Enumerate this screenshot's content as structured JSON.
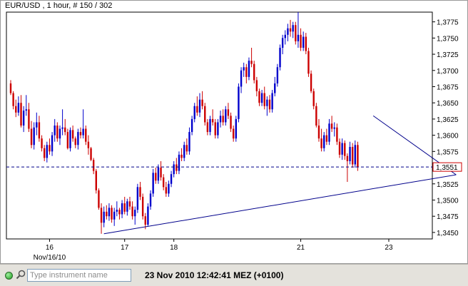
{
  "header": {
    "title": "EUR/USD , 1 hour, # 150 / 302"
  },
  "status_bar": {
    "instrument_placeholder": "Type instrument name",
    "datetime": "23 Nov 2010 12:42:41 MEZ (+0100)"
  },
  "colors": {
    "up_candle": "#0000cc",
    "down_candle": "#cc0000",
    "price_line": "#00008b",
    "trendline": "#00008b",
    "price_label_border": "#cc0000"
  },
  "chart_data": {
    "type": "candlestick",
    "title": "EUR/USD , 1 hour, # 150 / 302",
    "ylim": [
      1.344,
      1.379
    ],
    "y_ticks": [
      {
        "value": 1.3775,
        "label": "1,3775"
      },
      {
        "value": 1.375,
        "label": "1,3750"
      },
      {
        "value": 1.3725,
        "label": "1,3725"
      },
      {
        "value": 1.37,
        "label": "1,3700"
      },
      {
        "value": 1.3675,
        "label": "1,3675"
      },
      {
        "value": 1.365,
        "label": "1,3650"
      },
      {
        "value": 1.3625,
        "label": "1,3625"
      },
      {
        "value": 1.36,
        "label": "1,3600"
      },
      {
        "value": 1.3575,
        "label": "1,3575"
      },
      {
        "value": 1.3525,
        "label": "1,3525"
      },
      {
        "value": 1.35,
        "label": "1,3500"
      },
      {
        "value": 1.3475,
        "label": "1,3475"
      },
      {
        "value": 1.345,
        "label": "1,3450"
      }
    ],
    "x_ticks": [
      {
        "index": 15,
        "label": "16"
      },
      {
        "index": 44,
        "label": "17"
      },
      {
        "index": 63,
        "label": "18"
      },
      {
        "index": 112,
        "label": "21"
      },
      {
        "index": 146,
        "label": "23"
      }
    ],
    "x_sublabel": {
      "index": 15,
      "label": "Nov/16/10"
    },
    "last_price": {
      "value": 1.3551,
      "label": "1,3551"
    },
    "trendlines": [
      {
        "from": {
          "index": 36,
          "value": 1.3448
        },
        "to": {
          "index": 172,
          "value": 1.3539
        }
      },
      {
        "from": {
          "index": 140,
          "value": 1.363
        },
        "to": {
          "index": 172,
          "value": 1.3539
        }
      }
    ],
    "candles": [
      [
        1.368,
        1.3685,
        1.3662,
        1.3665
      ],
      [
        1.3665,
        1.3668,
        1.364,
        1.3645
      ],
      [
        1.3645,
        1.3655,
        1.3628,
        1.3635
      ],
      [
        1.3635,
        1.366,
        1.363,
        1.365
      ],
      [
        1.365,
        1.3662,
        1.3612,
        1.3615
      ],
      [
        1.3615,
        1.3645,
        1.3605,
        1.3638
      ],
      [
        1.3638,
        1.3662,
        1.363,
        1.364
      ],
      [
        1.364,
        1.365,
        1.3605,
        1.361
      ],
      [
        1.361,
        1.3622,
        1.358,
        1.3585
      ],
      [
        1.3585,
        1.362,
        1.3578,
        1.3612
      ],
      [
        1.3612,
        1.3635,
        1.36,
        1.362
      ],
      [
        1.362,
        1.363,
        1.359,
        1.3595
      ],
      [
        1.3595,
        1.36,
        1.3575,
        1.358
      ],
      [
        1.358,
        1.3585,
        1.356,
        1.3565
      ],
      [
        1.3565,
        1.359,
        1.3558,
        1.3585
      ],
      [
        1.3585,
        1.3595,
        1.357,
        1.3575
      ],
      [
        1.3575,
        1.3605,
        1.3568,
        1.36
      ],
      [
        1.36,
        1.3625,
        1.359,
        1.3615
      ],
      [
        1.3615,
        1.362,
        1.359,
        1.3595
      ],
      [
        1.3595,
        1.3615,
        1.3585,
        1.361
      ],
      [
        1.361,
        1.364,
        1.36,
        1.3612
      ],
      [
        1.3612,
        1.3625,
        1.36,
        1.3605
      ],
      [
        1.3605,
        1.361,
        1.3578,
        1.358
      ],
      [
        1.358,
        1.3612,
        1.3575,
        1.3608
      ],
      [
        1.3608,
        1.3615,
        1.359,
        1.3595
      ],
      [
        1.3595,
        1.3598,
        1.358,
        1.3585
      ],
      [
        1.3585,
        1.361,
        1.3578,
        1.3605
      ],
      [
        1.3605,
        1.3612,
        1.3595,
        1.36
      ],
      [
        1.36,
        1.364,
        1.3595,
        1.361
      ],
      [
        1.361,
        1.3615,
        1.3585,
        1.359
      ],
      [
        1.359,
        1.36,
        1.357,
        1.358
      ],
      [
        1.358,
        1.3582,
        1.356,
        1.3562
      ],
      [
        1.3562,
        1.3565,
        1.354,
        1.3545
      ],
      [
        1.3545,
        1.3548,
        1.351,
        1.3515
      ],
      [
        1.3515,
        1.3518,
        1.3485,
        1.3488
      ],
      [
        1.3488,
        1.3495,
        1.3448,
        1.3465
      ],
      [
        1.3465,
        1.349,
        1.3458,
        1.3482
      ],
      [
        1.3482,
        1.3492,
        1.347,
        1.3475
      ],
      [
        1.3475,
        1.3495,
        1.3468,
        1.3488
      ],
      [
        1.3488,
        1.3492,
        1.3465,
        1.347
      ],
      [
        1.347,
        1.3488,
        1.346,
        1.3482
      ],
      [
        1.3482,
        1.3498,
        1.3475,
        1.3485
      ],
      [
        1.3485,
        1.3488,
        1.347,
        1.3478
      ],
      [
        1.3478,
        1.35,
        1.3472,
        1.3495
      ],
      [
        1.3495,
        1.3505,
        1.3478,
        1.3482
      ],
      [
        1.3482,
        1.3502,
        1.3476,
        1.3498
      ],
      [
        1.3498,
        1.3505,
        1.3485,
        1.349
      ],
      [
        1.349,
        1.3498,
        1.347,
        1.3475
      ],
      [
        1.3475,
        1.349,
        1.3462,
        1.3485
      ],
      [
        1.3485,
        1.3525,
        1.348,
        1.352
      ],
      [
        1.352,
        1.3528,
        1.35,
        1.3505
      ],
      [
        1.3505,
        1.351,
        1.347,
        1.3475
      ],
      [
        1.3475,
        1.348,
        1.3455,
        1.3462
      ],
      [
        1.3462,
        1.3495,
        1.346,
        1.349
      ],
      [
        1.349,
        1.3515,
        1.3485,
        1.351
      ],
      [
        1.351,
        1.3548,
        1.3505,
        1.3542
      ],
      [
        1.3542,
        1.355,
        1.3525,
        1.353
      ],
      [
        1.353,
        1.3555,
        1.3525,
        1.355
      ],
      [
        1.355,
        1.356,
        1.353,
        1.3535
      ],
      [
        1.3535,
        1.354,
        1.3515,
        1.352
      ],
      [
        1.352,
        1.3528,
        1.3505,
        1.351
      ],
      [
        1.351,
        1.353,
        1.3505,
        1.3525
      ],
      [
        1.3525,
        1.3545,
        1.352,
        1.354
      ],
      [
        1.354,
        1.356,
        1.3535,
        1.3555
      ],
      [
        1.3555,
        1.3565,
        1.354,
        1.3545
      ],
      [
        1.3545,
        1.3575,
        1.354,
        1.357
      ],
      [
        1.357,
        1.358,
        1.356,
        1.3565
      ],
      [
        1.3565,
        1.359,
        1.356,
        1.3585
      ],
      [
        1.3585,
        1.3595,
        1.357,
        1.3575
      ],
      [
        1.3575,
        1.3612,
        1.357,
        1.3605
      ],
      [
        1.3605,
        1.363,
        1.36,
        1.3625
      ],
      [
        1.3625,
        1.365,
        1.362,
        1.3645
      ],
      [
        1.3645,
        1.366,
        1.363,
        1.3635
      ],
      [
        1.3635,
        1.3665,
        1.3628,
        1.3655
      ],
      [
        1.3655,
        1.3668,
        1.364,
        1.3645
      ],
      [
        1.3645,
        1.365,
        1.3615,
        1.362
      ],
      [
        1.362,
        1.3625,
        1.36,
        1.3605
      ],
      [
        1.3605,
        1.363,
        1.36,
        1.3625
      ],
      [
        1.3625,
        1.364,
        1.3615,
        1.362
      ],
      [
        1.362,
        1.3625,
        1.3595,
        1.36
      ],
      [
        1.36,
        1.3625,
        1.3595,
        1.362
      ],
      [
        1.362,
        1.3638,
        1.3612,
        1.363
      ],
      [
        1.363,
        1.364,
        1.3615,
        1.362
      ],
      [
        1.362,
        1.3645,
        1.3615,
        1.364
      ],
      [
        1.364,
        1.365,
        1.3625,
        1.363
      ],
      [
        1.363,
        1.3635,
        1.3605,
        1.361
      ],
      [
        1.361,
        1.3615,
        1.359,
        1.3595
      ],
      [
        1.3595,
        1.363,
        1.359,
        1.3625
      ],
      [
        1.3625,
        1.368,
        1.362,
        1.3675
      ],
      [
        1.3675,
        1.3705,
        1.3665,
        1.37
      ],
      [
        1.37,
        1.3712,
        1.369,
        1.3705
      ],
      [
        1.3705,
        1.371,
        1.368,
        1.369
      ],
      [
        1.369,
        1.372,
        1.3685,
        1.3715
      ],
      [
        1.3715,
        1.3735,
        1.3705,
        1.371
      ],
      [
        1.371,
        1.3715,
        1.368,
        1.3685
      ],
      [
        1.3685,
        1.369,
        1.366,
        1.3668
      ],
      [
        1.3668,
        1.3672,
        1.3645,
        1.365
      ],
      [
        1.365,
        1.367,
        1.3645,
        1.3665
      ],
      [
        1.3665,
        1.3675,
        1.364,
        1.3645
      ],
      [
        1.3645,
        1.366,
        1.363,
        1.3655
      ],
      [
        1.3655,
        1.3662,
        1.3635,
        1.364
      ],
      [
        1.364,
        1.367,
        1.3635,
        1.3665
      ],
      [
        1.3665,
        1.369,
        1.366,
        1.368
      ],
      [
        1.368,
        1.371,
        1.3675,
        1.3705
      ],
      [
        1.3705,
        1.374,
        1.37,
        1.3735
      ],
      [
        1.3735,
        1.3755,
        1.3725,
        1.375
      ],
      [
        1.375,
        1.3762,
        1.374,
        1.3755
      ],
      [
        1.3755,
        1.3772,
        1.3745,
        1.3765
      ],
      [
        1.3765,
        1.3778,
        1.3752,
        1.376
      ],
      [
        1.376,
        1.3775,
        1.375,
        1.377
      ],
      [
        1.377,
        1.3775,
        1.374,
        1.3745
      ],
      [
        1.3745,
        1.379,
        1.3735,
        1.3755
      ],
      [
        1.3755,
        1.3765,
        1.373,
        1.3735
      ],
      [
        1.3735,
        1.376,
        1.373,
        1.3752
      ],
      [
        1.3752,
        1.3758,
        1.3725,
        1.373
      ],
      [
        1.373,
        1.3735,
        1.369,
        1.3695
      ],
      [
        1.3695,
        1.37,
        1.3665,
        1.3668
      ],
      [
        1.3668,
        1.3672,
        1.364,
        1.3645
      ],
      [
        1.3645,
        1.365,
        1.3612,
        1.3615
      ],
      [
        1.3615,
        1.3625,
        1.359,
        1.3595
      ],
      [
        1.3595,
        1.361,
        1.3575,
        1.358
      ],
      [
        1.358,
        1.3605,
        1.3575,
        1.36
      ],
      [
        1.36,
        1.361,
        1.3585,
        1.359
      ],
      [
        1.359,
        1.3625,
        1.3585,
        1.3618
      ],
      [
        1.3618,
        1.363,
        1.3605,
        1.361
      ],
      [
        1.361,
        1.362,
        1.3598,
        1.3612
      ],
      [
        1.3612,
        1.3618,
        1.3585,
        1.359
      ],
      [
        1.359,
        1.3595,
        1.3565,
        1.357
      ],
      [
        1.357,
        1.3595,
        1.3562,
        1.3588
      ],
      [
        1.3588,
        1.3592,
        1.3562,
        1.3568
      ],
      [
        1.3568,
        1.3572,
        1.3528,
        1.356
      ],
      [
        1.356,
        1.359,
        1.3555,
        1.3582
      ],
      [
        1.3582,
        1.3588,
        1.355,
        1.3555
      ],
      [
        1.3555,
        1.3592,
        1.355,
        1.3585
      ],
      [
        1.3585,
        1.359,
        1.3545,
        1.3551
      ]
    ]
  }
}
